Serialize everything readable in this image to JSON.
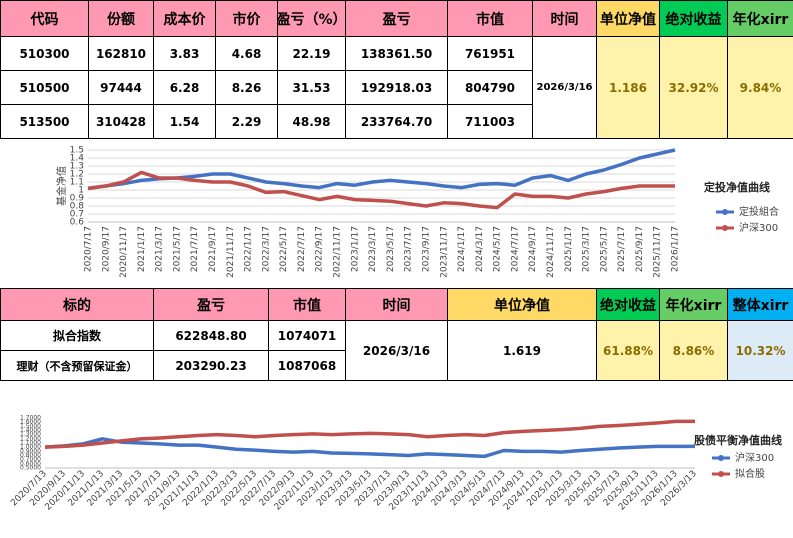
{
  "table1": {
    "headers": [
      "代码",
      "份额",
      "成本价",
      "市价",
      "盈亏（%）",
      "盈亏",
      "市值",
      "时间",
      "单位净值",
      "绝对收益",
      "年化xirr"
    ],
    "rows": [
      [
        "510300",
        "162810",
        "3.83",
        "4.68",
        "22.19",
        "138361.50",
        "761951"
      ],
      [
        "510500",
        "97444",
        "6.28",
        "8.26",
        "31.53",
        "192918.03",
        "804790"
      ],
      [
        "513500",
        "310428",
        "1.54",
        "2.29",
        "48.98",
        "233764.70",
        "711003"
      ]
    ],
    "time": "2026/3/16",
    "nav": "1.186",
    "abs_return": "32.92%",
    "xirr": "9.84%"
  },
  "table2": {
    "headers": [
      "标的",
      "盈亏",
      "市值",
      "时间",
      "单位净值",
      "绝对收益",
      "年化xirr",
      "整体xirr"
    ],
    "rows": [
      [
        "拟合指数",
        "622848.80",
        "1074071"
      ],
      [
        "理财（不含预留保证金）",
        "203290.23",
        "1087068"
      ]
    ],
    "time": "2026/3/16",
    "nav": "1.619",
    "abs_return": "61.88%",
    "xirr": "8.86%",
    "total_xirr": "10.32%"
  },
  "chart_data": [
    {
      "type": "line",
      "title": "定投净值曲线",
      "y_label": "基金净值",
      "categories": [
        "2020/7/17",
        "2020/9/17",
        "2020/11/17",
        "2021/1/17",
        "2021/3/17",
        "2021/5/17",
        "2021/7/17",
        "2021/9/17",
        "2021/11/17",
        "2022/1/17",
        "2022/3/17",
        "2022/5/17",
        "2022/7/17",
        "2022/9/17",
        "2022/11/17",
        "2023/1/17",
        "2023/3/17",
        "2023/5/17",
        "2023/7/17",
        "2023/9/17",
        "2023/11/17",
        "2024/1/17",
        "2024/3/17",
        "2024/5/17",
        "2024/7/17",
        "2024/9/17",
        "2024/11/17",
        "2025/1/17",
        "2025/3/17",
        "2025/5/17",
        "2025/7/17",
        "2025/9/17",
        "2025/11/17",
        "2026/1/17"
      ],
      "series": [
        {
          "name": "定投組合",
          "color": "#4472c4",
          "values": [
            1.02,
            1.05,
            1.08,
            1.12,
            1.14,
            1.15,
            1.17,
            1.2,
            1.2,
            1.15,
            1.1,
            1.08,
            1.05,
            1.03,
            1.08,
            1.06,
            1.1,
            1.12,
            1.1,
            1.08,
            1.05,
            1.03,
            1.07,
            1.08,
            1.06,
            1.15,
            1.18,
            1.12,
            1.2,
            1.25,
            1.32,
            1.4,
            1.45,
            1.5
          ]
        },
        {
          "name": "沪深300",
          "color": "#c0504d",
          "values": [
            1.02,
            1.05,
            1.1,
            1.22,
            1.15,
            1.15,
            1.12,
            1.1,
            1.1,
            1.05,
            0.97,
            0.98,
            0.93,
            0.88,
            0.92,
            0.88,
            0.87,
            0.86,
            0.83,
            0.8,
            0.84,
            0.83,
            0.8,
            0.78,
            0.95,
            0.92,
            0.92,
            0.9,
            0.95,
            0.98,
            1.02,
            1.05,
            1.05,
            1.05
          ]
        }
      ],
      "ylim": [
        0.6,
        1.5
      ],
      "yticks": [
        0.6,
        0.7,
        0.8,
        0.9,
        1,
        1.1,
        1.2,
        1.3,
        1.4,
        1.5
      ],
      "grid": true
    },
    {
      "type": "line",
      "title": "股债平衡净值曲线",
      "categories": [
        "2020/7/13",
        "2020/9/13",
        "2020/11/13",
        "2021/1/13",
        "2021/3/13",
        "2021/5/13",
        "2021/7/13",
        "2021/9/13",
        "2021/11/13",
        "2022/1/13",
        "2022/3/13",
        "2022/5/13",
        "2022/7/13",
        "2022/9/13",
        "2022/11/13",
        "2023/1/13",
        "2023/3/13",
        "2023/5/13",
        "2023/7/13",
        "2023/9/13",
        "2023/11/13",
        "2024/1/13",
        "2024/3/13",
        "2024/5/13",
        "2024/7/13",
        "2024/9/13",
        "2024/11/13",
        "2025/1/13",
        "2025/3/13",
        "2025/5/13",
        "2025/7/13",
        "2025/9/13",
        "2025/11/13",
        "2026/1/13",
        "2026/3/13"
      ],
      "series": [
        {
          "name": "沪深300",
          "color": "#4472c4",
          "values": [
            1.0,
            1.03,
            1.08,
            1.2,
            1.12,
            1.1,
            1.08,
            1.05,
            1.05,
            1.0,
            0.95,
            0.93,
            0.9,
            0.88,
            0.9,
            0.86,
            0.85,
            0.84,
            0.82,
            0.8,
            0.84,
            0.82,
            0.8,
            0.78,
            0.92,
            0.9,
            0.9,
            0.88,
            0.92,
            0.95,
            0.98,
            1.0,
            1.02,
            1.02,
            1.02
          ]
        },
        {
          "name": "拟合股",
          "color": "#c0504d",
          "values": [
            1.0,
            1.02,
            1.05,
            1.1,
            1.15,
            1.2,
            1.22,
            1.25,
            1.28,
            1.3,
            1.28,
            1.25,
            1.28,
            1.3,
            1.32,
            1.3,
            1.32,
            1.33,
            1.32,
            1.3,
            1.25,
            1.28,
            1.3,
            1.28,
            1.35,
            1.38,
            1.4,
            1.42,
            1.45,
            1.5,
            1.52,
            1.55,
            1.58,
            1.62,
            1.62
          ]
        }
      ],
      "ylim": [
        0.5,
        1.7
      ],
      "yticks": [
        {
          "value": 0.5,
          "label": "0.5000"
        },
        {
          "value": 0.6,
          "label": "0.6000"
        },
        {
          "value": 0.7,
          "label": "0.7000"
        },
        {
          "value": 0.8,
          "label": "0.8000"
        },
        {
          "value": 0.9,
          "label": "0.9000"
        },
        {
          "value": 1,
          "label": "1.0000"
        },
        {
          "value": 1.1,
          "label": "1.1000"
        },
        {
          "value": 1.2,
          "label": "1.2000"
        },
        {
          "value": 1.3,
          "label": "1.3000"
        },
        {
          "value": 1.4,
          "label": "1.4000"
        },
        {
          "value": 1.5,
          "label": "1.5000"
        },
        {
          "value": 1.6,
          "label": "1.6000"
        },
        {
          "value": 1.7,
          "label": "1.7000"
        }
      ],
      "grid": false
    }
  ]
}
